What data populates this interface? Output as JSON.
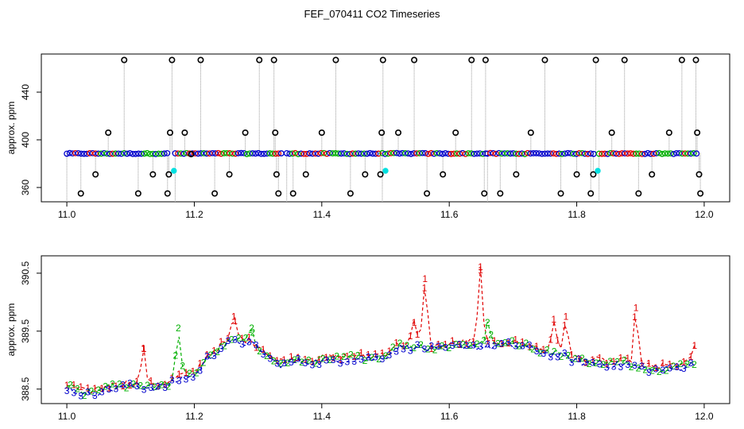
{
  "title": "FEF_070411  CO2 Timeseries",
  "colors": {
    "series1": "#e00000",
    "series2": "#00b000",
    "series3": "#0000cc",
    "spikes": "#000000",
    "cyan": "#00e0e0",
    "vline": "#9a9a9a"
  },
  "chart_data": [
    {
      "type": "scatter",
      "name": "top-panel",
      "xlabel": "",
      "ylabel": "approx. ppm",
      "xlim": [
        10.96,
        12.04
      ],
      "ylim": [
        348,
        472
      ],
      "xticks": [
        "11.0",
        "11.2",
        "11.4",
        "11.6",
        "11.8",
        "12.0"
      ],
      "xtick_values": [
        11.0,
        11.2,
        11.4,
        11.6,
        11.8,
        12.0
      ],
      "yticks": [
        "360",
        "400",
        "440"
      ],
      "ytick_values": [
        360,
        400,
        440
      ],
      "baseline": 388.5,
      "segments": [
        [
          11.0,
          11.16
        ],
        [
          11.17,
          11.34
        ],
        [
          11.345,
          11.49
        ],
        [
          11.495,
          11.66
        ],
        [
          11.66,
          11.83
        ],
        [
          11.835,
          11.99
        ]
      ],
      "spikes": [
        {
          "x": 11.022,
          "y": 355
        },
        {
          "x": 11.045,
          "y": 371
        },
        {
          "x": 11.065,
          "y": 406
        },
        {
          "x": 11.09,
          "y": 467
        },
        {
          "x": 11.112,
          "y": 355
        },
        {
          "x": 11.135,
          "y": 371
        },
        {
          "x": 11.158,
          "y": 355
        },
        {
          "x": 11.16,
          "y": 371
        },
        {
          "x": 11.162,
          "y": 406
        },
        {
          "x": 11.165,
          "y": 467
        },
        {
          "x": 11.185,
          "y": 406
        },
        {
          "x": 11.195,
          "y": 388
        },
        {
          "x": 11.21,
          "y": 467
        },
        {
          "x": 11.232,
          "y": 355
        },
        {
          "x": 11.255,
          "y": 371
        },
        {
          "x": 11.28,
          "y": 406
        },
        {
          "x": 11.302,
          "y": 467
        },
        {
          "x": 11.325,
          "y": 467
        },
        {
          "x": 11.327,
          "y": 406
        },
        {
          "x": 11.329,
          "y": 371
        },
        {
          "x": 11.332,
          "y": 355
        },
        {
          "x": 11.355,
          "y": 355
        },
        {
          "x": 11.375,
          "y": 371
        },
        {
          "x": 11.4,
          "y": 406
        },
        {
          "x": 11.422,
          "y": 467
        },
        {
          "x": 11.445,
          "y": 355
        },
        {
          "x": 11.468,
          "y": 371
        },
        {
          "x": 11.492,
          "y": 371
        },
        {
          "x": 11.494,
          "y": 406
        },
        {
          "x": 11.496,
          "y": 467
        },
        {
          "x": 11.52,
          "y": 406
        },
        {
          "x": 11.545,
          "y": 467
        },
        {
          "x": 11.565,
          "y": 355
        },
        {
          "x": 11.59,
          "y": 371
        },
        {
          "x": 11.61,
          "y": 406
        },
        {
          "x": 11.635,
          "y": 467
        },
        {
          "x": 11.655,
          "y": 355
        },
        {
          "x": 11.657,
          "y": 467
        },
        {
          "x": 11.68,
          "y": 355
        },
        {
          "x": 11.705,
          "y": 371
        },
        {
          "x": 11.728,
          "y": 406
        },
        {
          "x": 11.75,
          "y": 467
        },
        {
          "x": 11.775,
          "y": 355
        },
        {
          "x": 11.8,
          "y": 371
        },
        {
          "x": 11.822,
          "y": 355
        },
        {
          "x": 11.826,
          "y": 371
        },
        {
          "x": 11.83,
          "y": 467
        },
        {
          "x": 11.855,
          "y": 406
        },
        {
          "x": 11.875,
          "y": 467
        },
        {
          "x": 11.897,
          "y": 355
        },
        {
          "x": 11.918,
          "y": 371
        },
        {
          "x": 11.945,
          "y": 406
        },
        {
          "x": 11.965,
          "y": 467
        },
        {
          "x": 11.987,
          "y": 467
        },
        {
          "x": 11.989,
          "y": 406
        },
        {
          "x": 11.992,
          "y": 371
        },
        {
          "x": 11.994,
          "y": 355
        }
      ],
      "cyan_points": [
        {
          "x": 11.168,
          "y": 374
        },
        {
          "x": 11.5,
          "y": 374
        },
        {
          "x": 11.833,
          "y": 374
        }
      ]
    },
    {
      "type": "scatter",
      "name": "bottom-panel",
      "xlabel": "",
      "ylabel": "approx. ppm",
      "xlim": [
        10.96,
        12.04
      ],
      "ylim": [
        388.25,
        390.8
      ],
      "xticks": [
        "11.0",
        "11.2",
        "11.4",
        "11.6",
        "11.8",
        "12.0"
      ],
      "xtick_values": [
        11.0,
        11.2,
        11.4,
        11.6,
        11.8,
        12.0
      ],
      "yticks": [
        "388.5",
        "389.5",
        "390.5"
      ],
      "ytick_values": [
        388.5,
        389.5,
        390.5
      ],
      "series_labels": [
        "1",
        "2",
        "3"
      ],
      "trend": [
        [
          11.0,
          388.55
        ],
        [
          11.03,
          388.42
        ],
        [
          11.06,
          388.52
        ],
        [
          11.1,
          388.58
        ],
        [
          11.14,
          388.55
        ],
        [
          11.16,
          388.6
        ],
        [
          11.18,
          388.72
        ],
        [
          11.2,
          388.75
        ],
        [
          11.22,
          389.05
        ],
        [
          11.25,
          389.3
        ],
        [
          11.27,
          389.35
        ],
        [
          11.29,
          389.3
        ],
        [
          11.31,
          389.15
        ],
        [
          11.33,
          388.95
        ],
        [
          11.36,
          389.0
        ],
        [
          11.4,
          389.0
        ],
        [
          11.45,
          389.05
        ],
        [
          11.48,
          389.05
        ],
        [
          11.5,
          389.1
        ],
        [
          11.52,
          389.25
        ],
        [
          11.55,
          389.25
        ],
        [
          11.58,
          389.2
        ],
        [
          11.6,
          389.25
        ],
        [
          11.63,
          389.28
        ],
        [
          11.66,
          389.25
        ],
        [
          11.69,
          389.3
        ],
        [
          11.72,
          389.25
        ],
        [
          11.75,
          389.15
        ],
        [
          11.78,
          389.1
        ],
        [
          11.8,
          389.0
        ],
        [
          11.85,
          388.95
        ],
        [
          11.88,
          388.95
        ],
        [
          11.92,
          388.85
        ],
        [
          11.95,
          388.88
        ],
        [
          11.985,
          388.95
        ]
      ],
      "peaks": [
        {
          "series": 1,
          "x": 11.12,
          "y": 389.2
        },
        {
          "series": 2,
          "x": 11.175,
          "y": 389.55
        },
        {
          "series": 1,
          "x": 11.262,
          "y": 389.75
        },
        {
          "series": 2,
          "x": 11.29,
          "y": 389.55
        },
        {
          "series": 1,
          "x": 11.545,
          "y": 389.65
        },
        {
          "series": 1,
          "x": 11.562,
          "y": 390.4
        },
        {
          "series": 1,
          "x": 11.649,
          "y": 390.55
        },
        {
          "series": 2,
          "x": 11.66,
          "y": 389.65
        },
        {
          "series": 1,
          "x": 11.764,
          "y": 389.7
        },
        {
          "series": 1,
          "x": 11.783,
          "y": 389.75
        },
        {
          "series": 1,
          "x": 11.893,
          "y": 389.9
        },
        {
          "series": 1,
          "x": 11.985,
          "y": 389.25
        }
      ]
    }
  ]
}
